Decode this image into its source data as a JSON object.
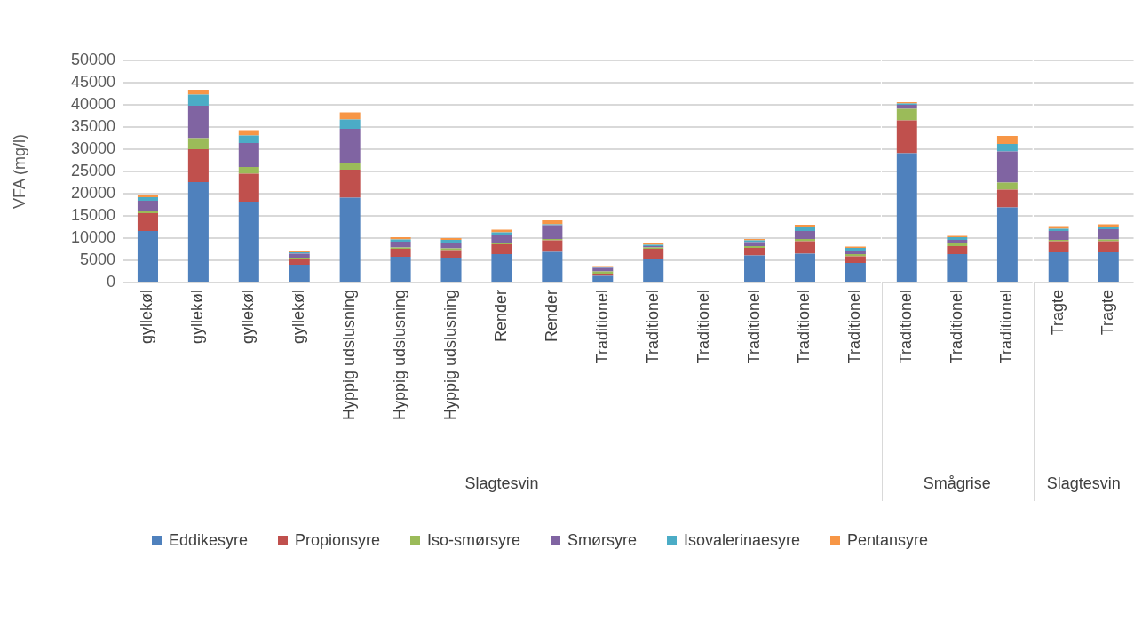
{
  "chart_data": [
    {
      "type": "bar",
      "stacked": true,
      "ylabel": "VFA (mg/l)",
      "xlabel": "Slagtesvin",
      "categories": [
        "gyllekøl",
        "gyllekøl",
        "gyllekøl",
        "gyllekøl",
        "Hyppig udslusning",
        "Hyppig udslusning",
        "Hyppig udslusning",
        "Render",
        "Render",
        "Traditionel",
        "Traditionel",
        "Traditionel",
        "Traditionel",
        "Traditionel",
        "Traditionel"
      ],
      "series": [
        {
          "name": "Eddikesyre",
          "color": "#4f81bd",
          "values": [
            11600,
            22600,
            18200,
            4000,
            19100,
            5800,
            5600,
            6400,
            6900,
            1500,
            5400,
            200,
            6100,
            6500,
            4400
          ]
        },
        {
          "name": "Propionsyre",
          "color": "#c0504d",
          "values": [
            4000,
            7400,
            6300,
            1300,
            6300,
            1800,
            1700,
            2200,
            2600,
            500,
            2200,
            0,
            1700,
            2800,
            1500
          ]
        },
        {
          "name": "Iso-smørsyre",
          "color": "#9bbb59",
          "values": [
            600,
            2500,
            1500,
            300,
            1500,
            300,
            400,
            300,
            300,
            500,
            300,
            0,
            400,
            500,
            500
          ]
        },
        {
          "name": "Smørsyre",
          "color": "#8064a2",
          "values": [
            2200,
            7300,
            5400,
            900,
            7700,
            1300,
            1300,
            1800,
            3100,
            800,
            300,
            0,
            900,
            1800,
            700
          ]
        },
        {
          "name": "Isovalerinaesyre",
          "color": "#4bacc6",
          "values": [
            800,
            2500,
            1700,
            300,
            2100,
            500,
            600,
            600,
            200,
            200,
            300,
            0,
            400,
            1000,
            700
          ]
        },
        {
          "name": "Pentansyre",
          "color": "#f79646",
          "values": [
            600,
            1100,
            1200,
            300,
            1600,
            500,
            400,
            600,
            900,
            200,
            300,
            0,
            300,
            400,
            300
          ]
        }
      ],
      "ylim": [
        0,
        50000
      ],
      "yticks": [
        0,
        5000,
        10000,
        15000,
        20000,
        25000,
        30000,
        35000,
        40000,
        45000,
        50000
      ],
      "grid": "y",
      "legend": "bottom"
    },
    {
      "type": "bar",
      "stacked": true,
      "xlabel": "Smågrise",
      "categories": [
        "Traditionel",
        "Traditionel",
        "Traditionel"
      ],
      "series": [
        {
          "color": "#4f81bd",
          "values": [
            29100,
            6400,
            16900
          ]
        },
        {
          "color": "#c0504d",
          "values": [
            7400,
            1800,
            4000
          ]
        },
        {
          "color": "#9bbb59",
          "values": [
            2600,
            600,
            1600
          ]
        },
        {
          "color": "#8064a2",
          "values": [
            900,
            800,
            7000
          ]
        },
        {
          "color": "#4bacc6",
          "values": [
            300,
            600,
            1700
          ]
        },
        {
          "color": "#f79646",
          "values": [
            300,
            300,
            1800
          ]
        }
      ],
      "ylim": [
        0,
        50000
      ],
      "yticks": [
        0,
        5000,
        10000,
        15000,
        20000,
        25000,
        30000,
        35000,
        40000,
        45000,
        50000
      ],
      "grid": "y",
      "tick_labels": "x"
    },
    {
      "type": "bar",
      "stacked": true,
      "xlabel": "Slagtesvin",
      "categories": [
        "Tragte",
        "Tragte"
      ],
      "series": [
        {
          "color": "#4f81bd",
          "values": [
            6800,
            6800
          ]
        },
        {
          "color": "#c0504d",
          "values": [
            2500,
            2500
          ]
        },
        {
          "color": "#9bbb59",
          "values": [
            300,
            400
          ]
        },
        {
          "color": "#8064a2",
          "values": [
            2000,
            2300
          ]
        },
        {
          "color": "#4bacc6",
          "values": [
            500,
            400
          ]
        },
        {
          "color": "#f79646",
          "values": [
            600,
            700
          ]
        }
      ],
      "ylim": [
        0,
        50000
      ],
      "yticks": [
        0,
        5000,
        10000,
        15000,
        20000,
        25000,
        30000,
        35000,
        40000,
        45000,
        50000
      ],
      "grid": "y",
      "tick_labels": "x"
    }
  ]
}
